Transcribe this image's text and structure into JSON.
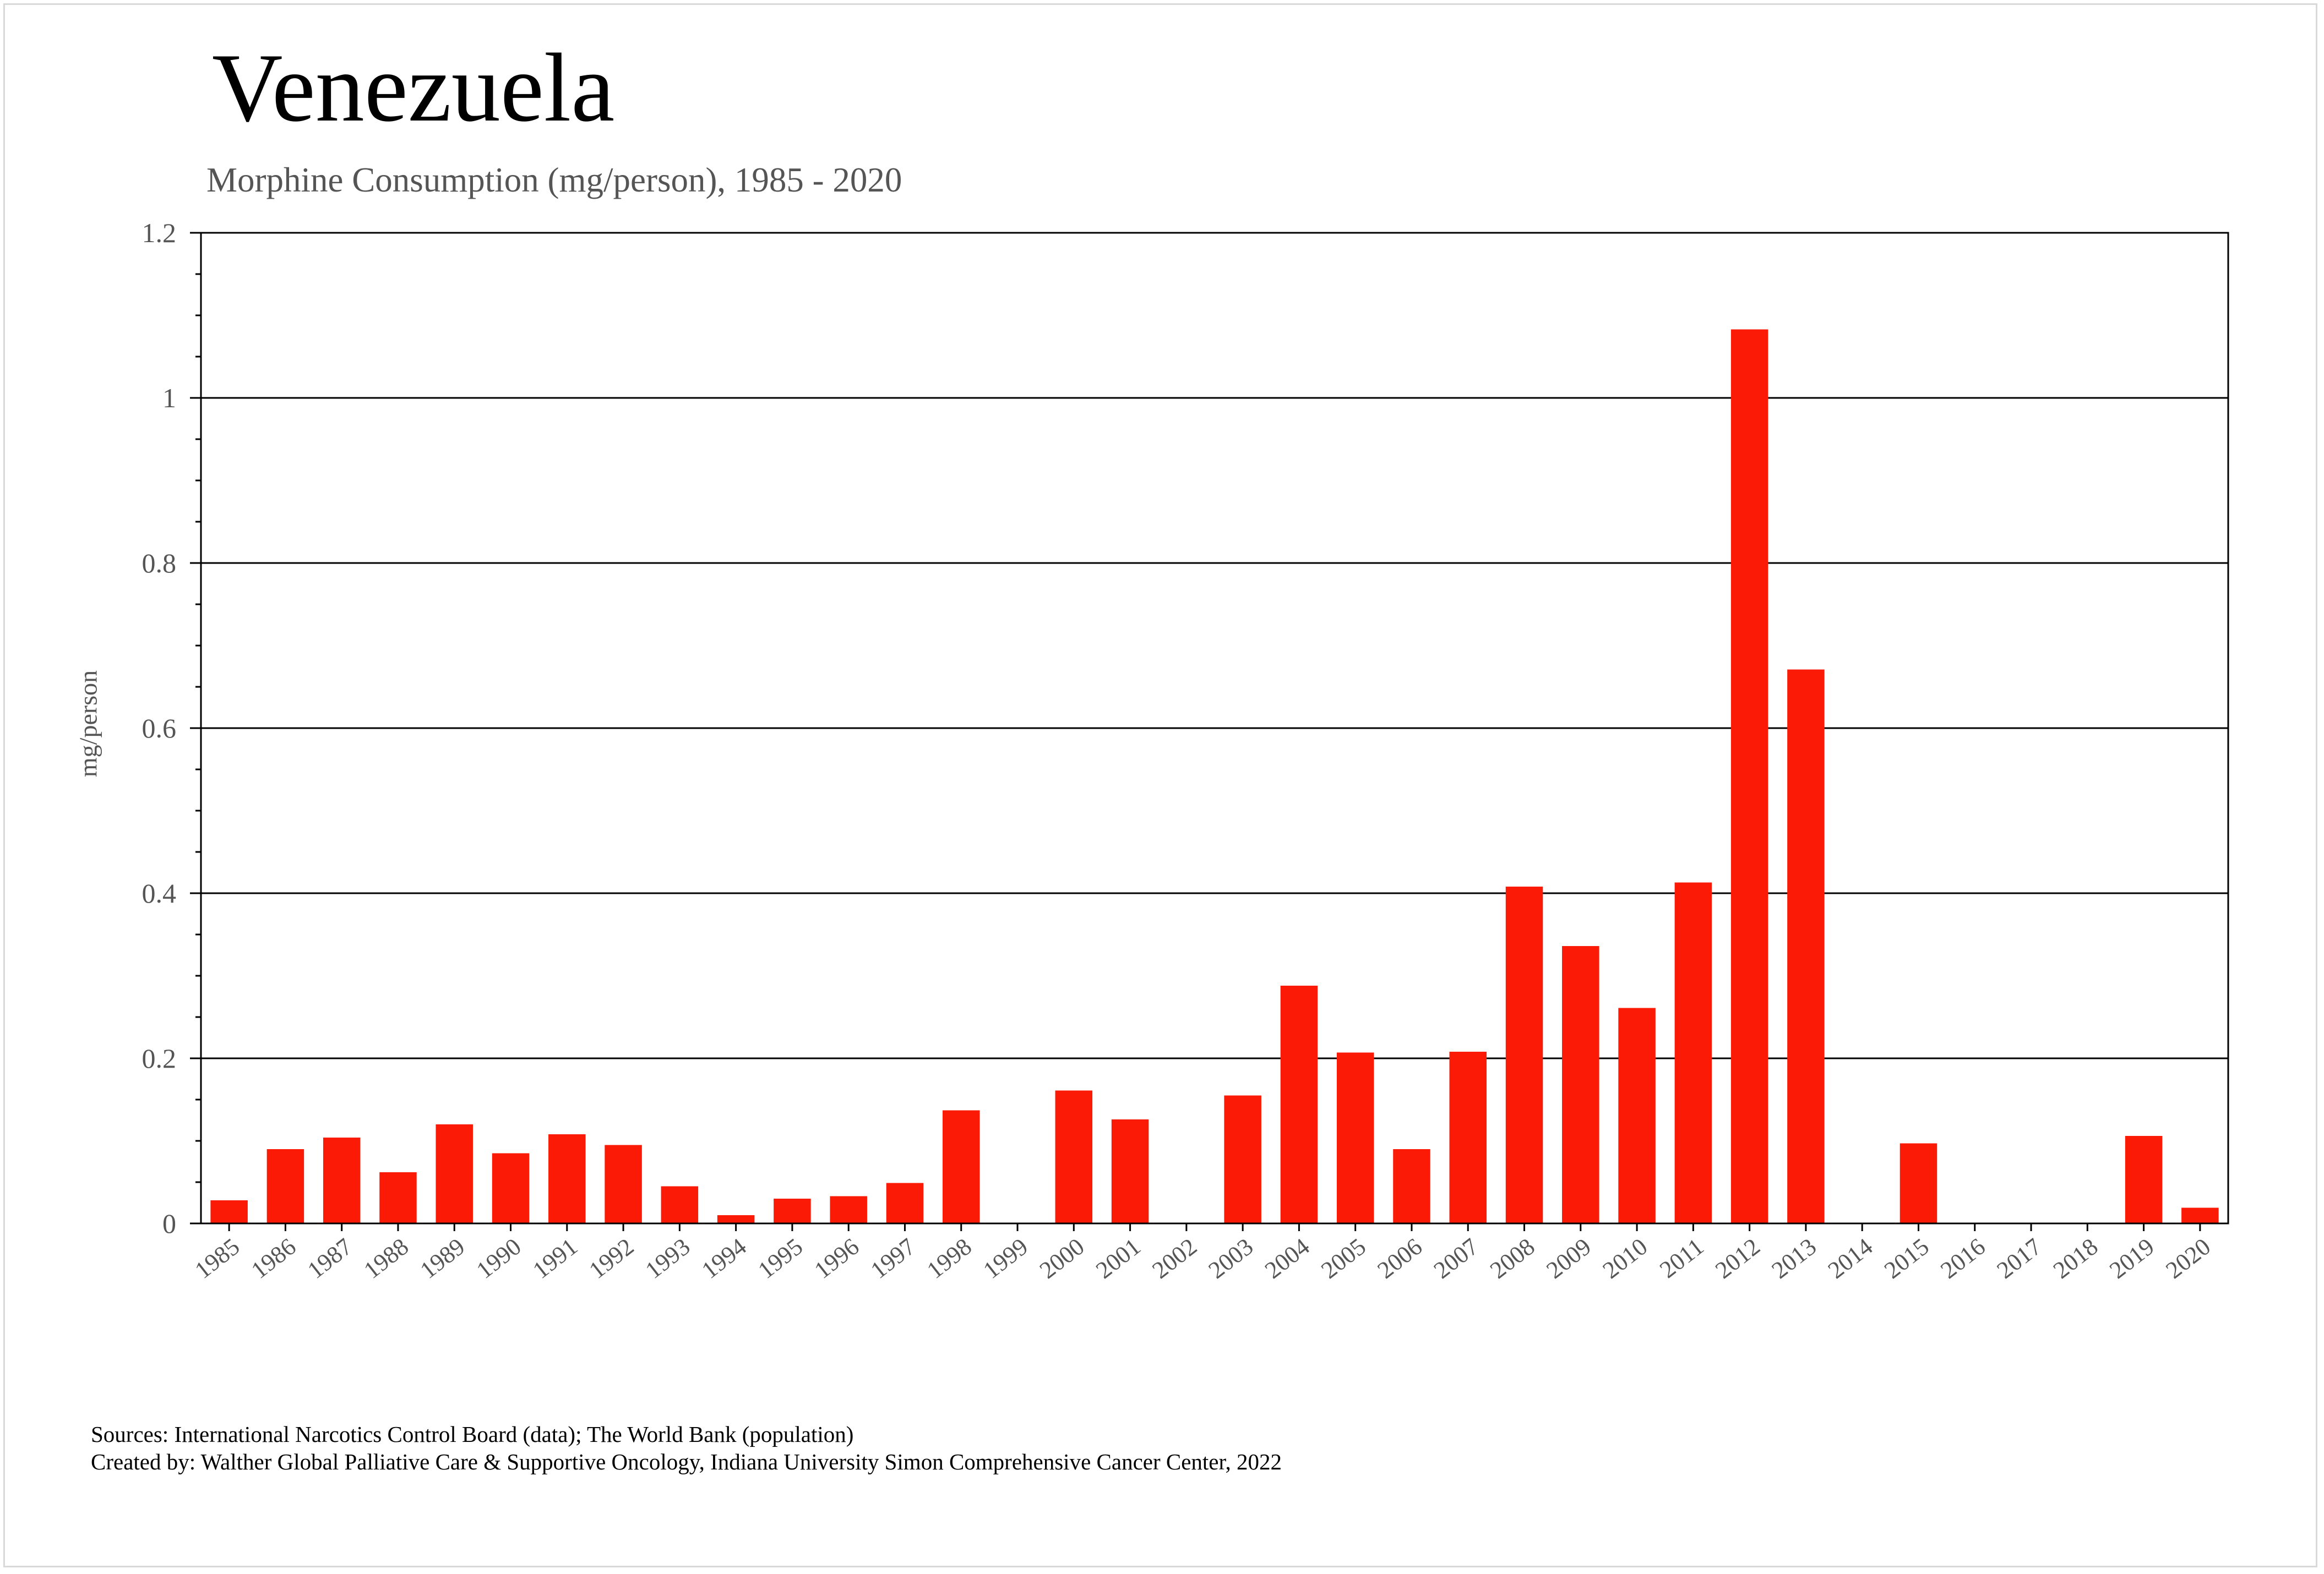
{
  "title": "Venezuela",
  "subtitle": "Morphine Consumption (mg/person), 1985 - 2020",
  "footer": {
    "sources": "Sources: International Narcotics Control Board (data); The World Bank (population)",
    "created_by": "Created by: Walther  Global Palliative Care & Supportive Oncology, Indiana University Simon Comprehensive Cancer Center, 2022"
  },
  "colors": {
    "bar": "#fa1a05",
    "grid": "#000000",
    "text": "#555555"
  },
  "chart_data": {
    "type": "bar",
    "title": "Venezuela",
    "subtitle": "Morphine Consumption (mg/person), 1985 - 2020",
    "xlabel": "",
    "ylabel": "mg/person",
    "ylim": [
      0,
      1.2
    ],
    "yticks": [
      "0",
      "0.2",
      "0.4",
      "0.6",
      "0.8",
      "1",
      "1.2"
    ],
    "grid": true,
    "categories": [
      "1985",
      "1986",
      "1987",
      "1988",
      "1989",
      "1990",
      "1991",
      "1992",
      "1993",
      "1994",
      "1995",
      "1996",
      "1997",
      "1998",
      "1999",
      "2000",
      "2001",
      "2002",
      "2003",
      "2004",
      "2005",
      "2006",
      "2007",
      "2008",
      "2009",
      "2010",
      "2011",
      "2012",
      "2013",
      "2014",
      "2015",
      "2016",
      "2017",
      "2018",
      "2019",
      "2020"
    ],
    "values": [
      0.028,
      0.09,
      0.104,
      0.062,
      0.12,
      0.085,
      0.108,
      0.095,
      0.045,
      0.01,
      0.03,
      0.033,
      0.049,
      0.137,
      0,
      0.161,
      0.126,
      0,
      0.155,
      0.288,
      0.207,
      0.09,
      0.208,
      0.408,
      0.336,
      0.261,
      0.413,
      1.083,
      0.671,
      0,
      0.097,
      0,
      0,
      0,
      0.106,
      0.019
    ]
  }
}
